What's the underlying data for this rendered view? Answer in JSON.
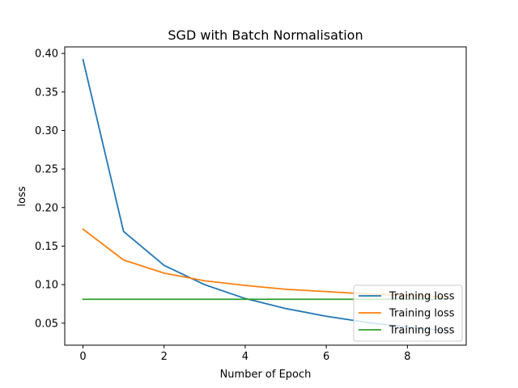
{
  "chart_data": {
    "type": "line",
    "title": "SGD with Batch Normalisation",
    "xlabel": "Number of Epoch",
    "ylabel": "loss",
    "xlim": [
      -0.45,
      9.45
    ],
    "ylim": [
      0.0215,
      0.4085
    ],
    "xticks": [
      0,
      2,
      4,
      6,
      8
    ],
    "xtick_labels": [
      "0",
      "2",
      "4",
      "6",
      "8"
    ],
    "yticks": [
      0.05,
      0.1,
      0.15,
      0.2,
      0.25,
      0.3,
      0.35,
      0.4
    ],
    "ytick_labels": [
      "0.05",
      "0.10",
      "0.15",
      "0.20",
      "0.25",
      "0.30",
      "0.35",
      "0.40"
    ],
    "grid": false,
    "legend_position": "lower-right",
    "x": [
      0,
      1,
      2,
      3,
      4,
      5,
      6,
      7,
      8,
      9
    ],
    "series": [
      {
        "name": "Training loss",
        "color": "#1f77b4",
        "values": [
          0.392,
          0.169,
          0.125,
          0.1,
          0.082,
          0.069,
          0.059,
          0.051,
          0.045,
          0.04
        ]
      },
      {
        "name": "Training loss",
        "color": "#ff7f0e",
        "values": [
          0.172,
          0.132,
          0.115,
          0.105,
          0.099,
          0.094,
          0.091,
          0.088,
          0.086,
          0.084
        ]
      },
      {
        "name": "Training loss",
        "color": "#2ca02c",
        "values": [
          0.081,
          0.081,
          0.081,
          0.081,
          0.081,
          0.081,
          0.081,
          0.081,
          0.081,
          0.081
        ]
      }
    ]
  }
}
